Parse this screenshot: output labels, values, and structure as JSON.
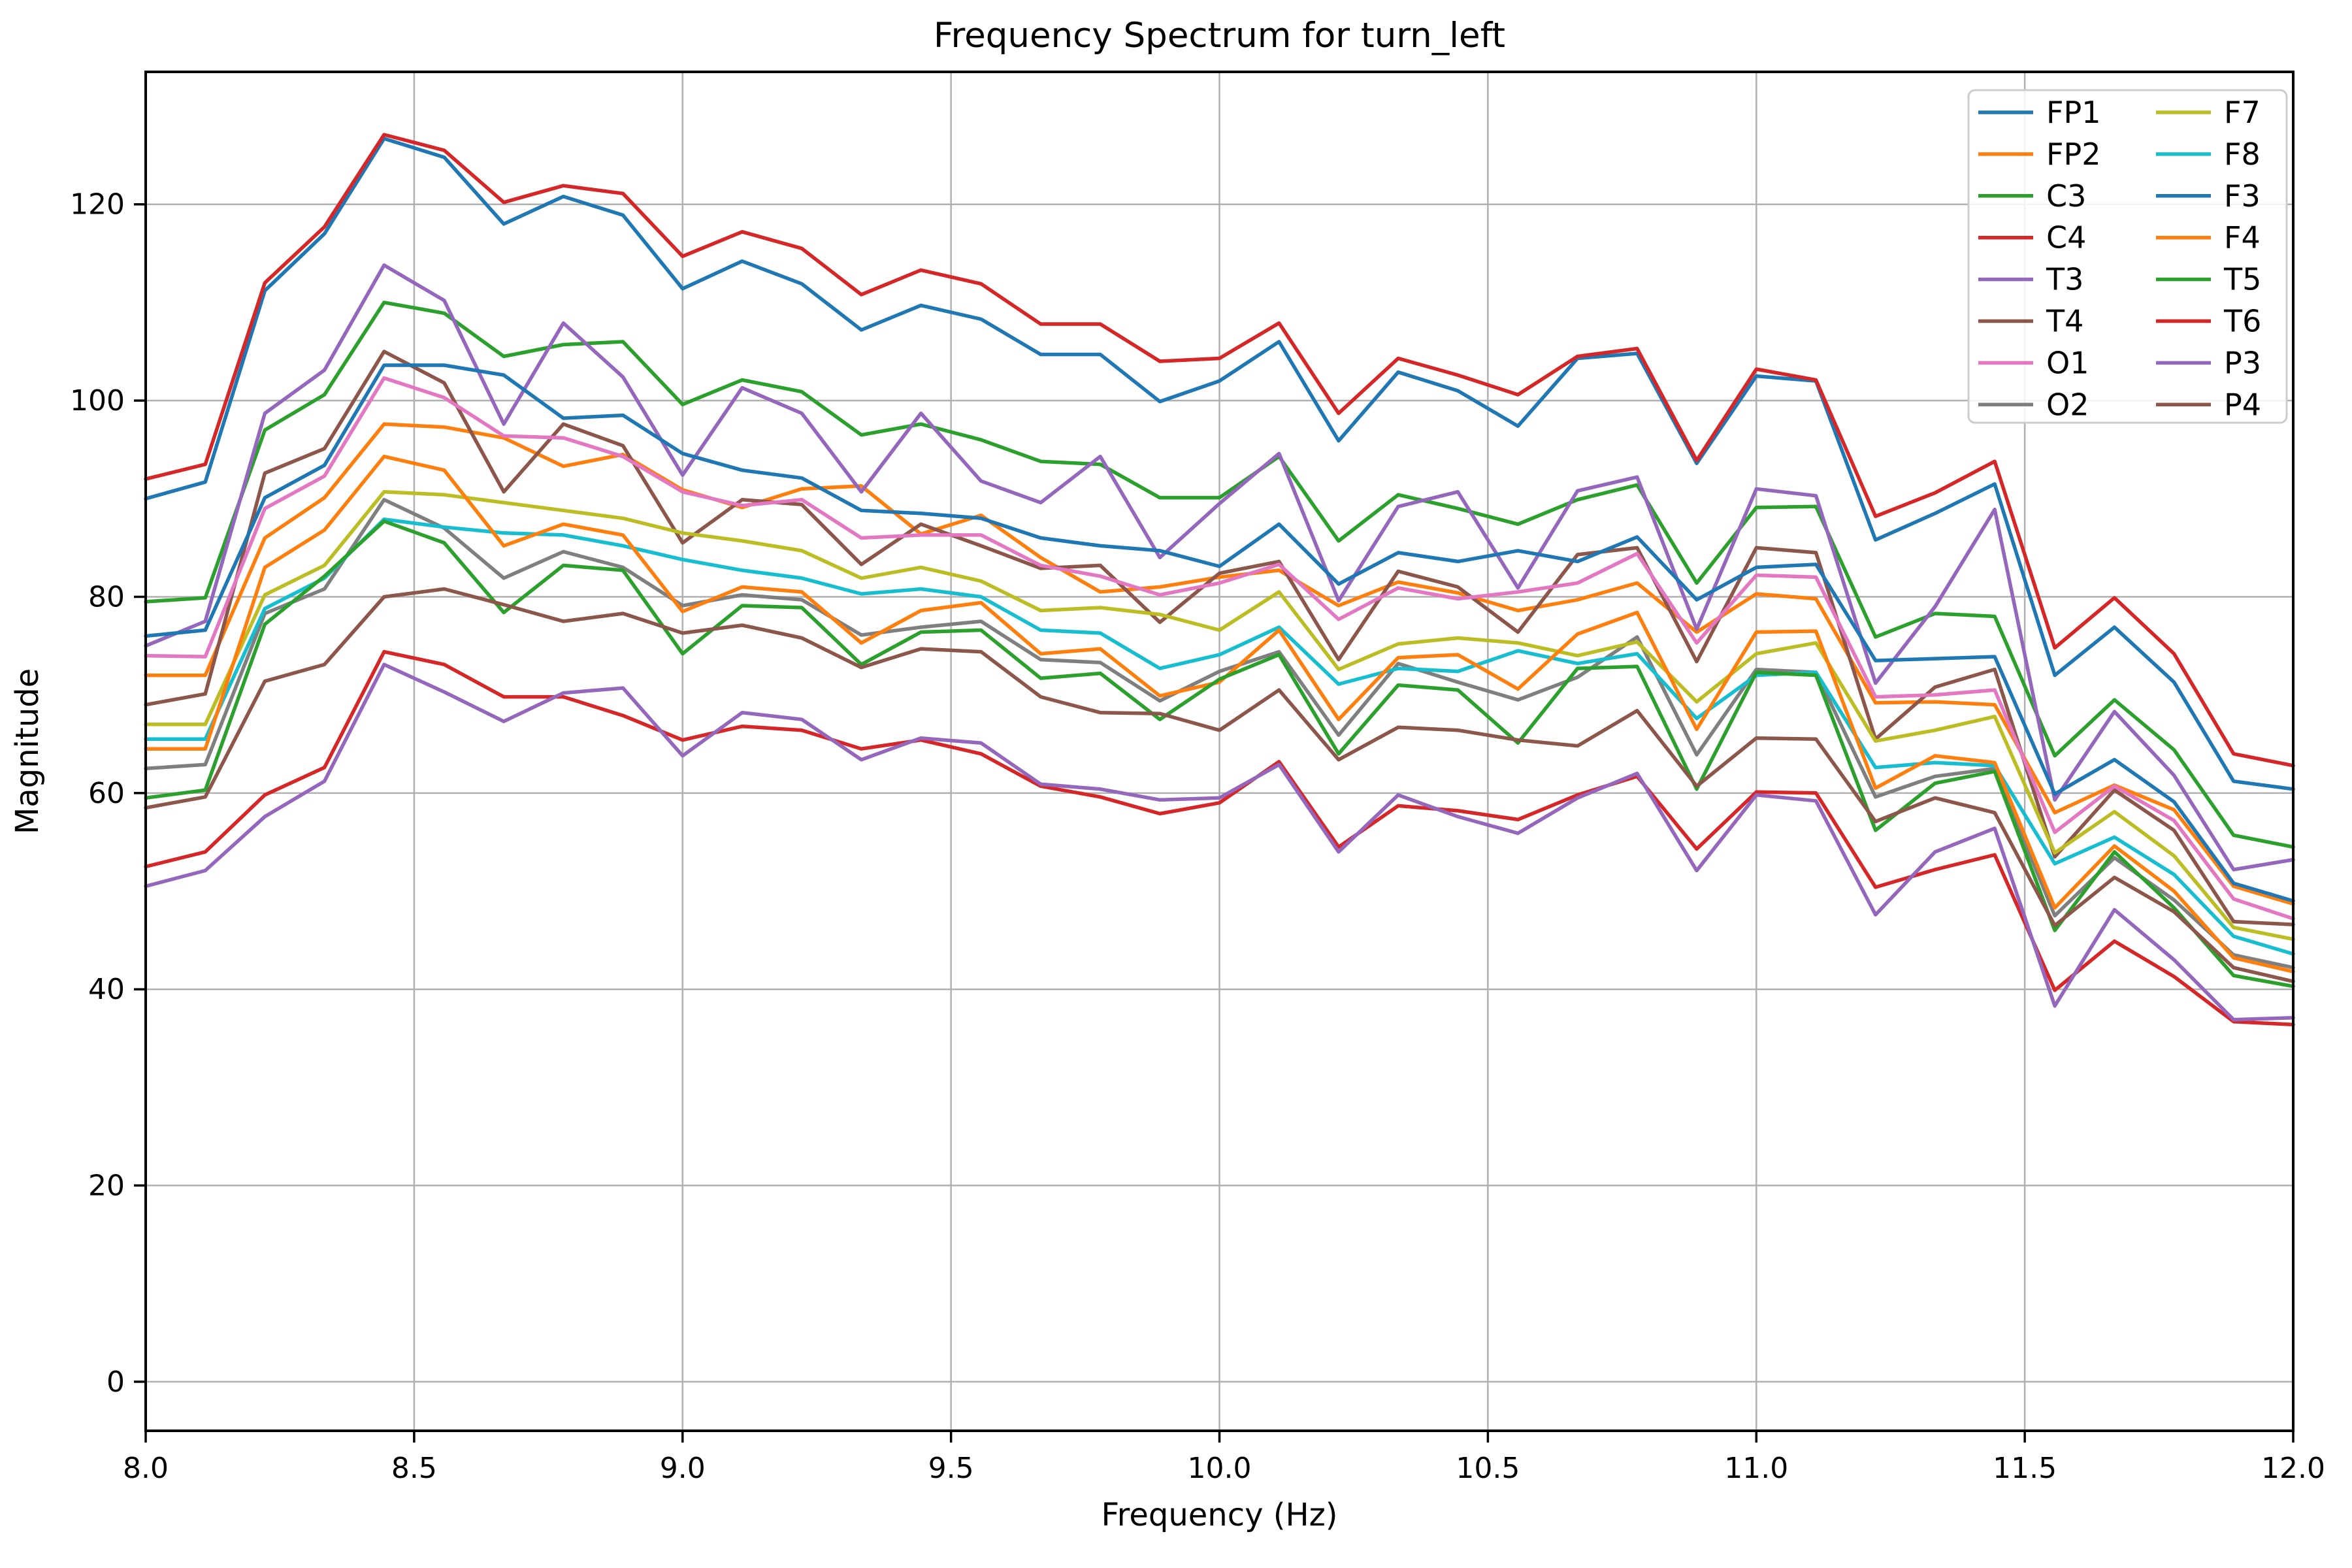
{
  "figure": {
    "title": "Frequency Spectrum for turn_left"
  },
  "chart_data": {
    "type": "line",
    "title": "Frequency Spectrum for turn_left",
    "xlabel": "Frequency (Hz)",
    "ylabel": "Magnitude",
    "xlim": [
      8.0,
      12.0
    ],
    "ylim": [
      -5.0,
      133.5
    ],
    "grid": true,
    "grid_color": "#b0b0b0",
    "legend_position": "upper right",
    "legend_columns": 2,
    "xticks": [
      8.0,
      8.5,
      9.0,
      9.5,
      10.0,
      10.5,
      11.0,
      11.5,
      12.0
    ],
    "xtick_labels": [
      "8.0",
      "8.5",
      "9.0",
      "9.5",
      "10.0",
      "10.5",
      "11.0",
      "11.5",
      "12.0"
    ],
    "yticks": [
      0,
      20,
      40,
      60,
      80,
      100,
      120
    ],
    "ytick_labels": [
      "0",
      "20",
      "40",
      "60",
      "80",
      "100",
      "120"
    ],
    "x": [
      8.0,
      8.111,
      8.222,
      8.333,
      8.444,
      8.556,
      8.667,
      8.778,
      8.889,
      9.0,
      9.111,
      9.222,
      9.333,
      9.444,
      9.556,
      9.667,
      9.778,
      9.889,
      10.0,
      10.111,
      10.222,
      10.333,
      10.444,
      10.556,
      10.667,
      10.778,
      10.889,
      11.0,
      11.111,
      11.222,
      11.333,
      11.444,
      11.556,
      11.667,
      11.778,
      11.889,
      12.0
    ],
    "series": [
      {
        "name": "FP1",
        "color": "#1f77b4",
        "values": [
          90.0,
          91.7,
          111.2,
          117.0,
          126.7,
          124.8,
          118.0,
          120.8,
          118.9,
          111.4,
          114.2,
          111.9,
          107.2,
          109.7,
          108.3,
          104.7,
          104.7,
          99.9,
          102.0,
          106.0,
          95.9,
          102.9,
          101.0,
          97.4,
          104.3,
          104.8,
          93.6,
          102.5,
          102.0,
          85.8,
          88.5,
          91.5,
          72.0,
          76.9,
          71.3,
          61.2,
          60.4
        ]
      },
      {
        "name": "FP2",
        "color": "#ff7f0e",
        "values": [
          72.0,
          72.0,
          86.0,
          90.1,
          97.6,
          97.3,
          96.2,
          93.3,
          94.5,
          90.9,
          89.1,
          91.0,
          91.3,
          86.4,
          88.3,
          84.0,
          80.5,
          81.0,
          82.0,
          82.7,
          79.1,
          81.5,
          80.4,
          78.6,
          79.7,
          81.4,
          76.4,
          80.3,
          79.8,
          69.2,
          69.3,
          69.0,
          58.0,
          60.8,
          58.3,
          50.5,
          48.7
        ]
      },
      {
        "name": "C3",
        "color": "#2ca02c",
        "values": [
          79.5,
          79.9,
          97.0,
          100.6,
          110.0,
          108.9,
          104.5,
          105.7,
          106.0,
          99.6,
          102.1,
          100.9,
          96.5,
          97.6,
          96.0,
          93.8,
          93.5,
          90.1,
          90.1,
          94.3,
          85.7,
          90.4,
          89.0,
          87.4,
          89.9,
          91.4,
          81.4,
          89.1,
          89.2,
          75.9,
          78.3,
          78.0,
          63.8,
          69.5,
          64.4,
          55.7,
          54.5
        ]
      },
      {
        "name": "C4",
        "color": "#d62728",
        "values": [
          92.0,
          93.5,
          112.0,
          117.7,
          127.1,
          125.5,
          120.2,
          121.9,
          121.1,
          114.7,
          117.2,
          115.5,
          110.8,
          113.3,
          111.9,
          107.8,
          107.8,
          104.0,
          104.3,
          107.9,
          98.7,
          104.3,
          102.6,
          100.6,
          104.5,
          105.3,
          93.9,
          103.2,
          102.1,
          88.2,
          90.6,
          93.8,
          74.8,
          79.9,
          74.2,
          64.0,
          62.8
        ]
      },
      {
        "name": "T3",
        "color": "#9467bd",
        "values": [
          75.0,
          77.5,
          98.7,
          103.1,
          113.8,
          110.2,
          97.6,
          107.9,
          102.4,
          92.4,
          101.3,
          98.7,
          90.7,
          98.7,
          91.8,
          89.6,
          94.3,
          84.0,
          89.5,
          94.6,
          79.6,
          89.2,
          90.7,
          80.9,
          90.8,
          92.2,
          76.7,
          91.0,
          90.3,
          71.2,
          79.0,
          88.9,
          59.3,
          68.3,
          61.8,
          52.2,
          53.2
        ]
      },
      {
        "name": "T4",
        "color": "#8c564b",
        "values": [
          69.0,
          70.1,
          92.6,
          95.1,
          105.0,
          101.8,
          90.7,
          97.6,
          95.4,
          85.5,
          89.9,
          89.4,
          83.3,
          87.4,
          85.2,
          82.9,
          83.2,
          77.4,
          82.4,
          83.6,
          73.6,
          82.6,
          81.0,
          76.4,
          84.3,
          85.0,
          73.4,
          85.0,
          84.5,
          65.5,
          70.8,
          72.6,
          53.5,
          60.3,
          56.2,
          46.9,
          46.6
        ]
      },
      {
        "name": "O1",
        "color": "#e377c2",
        "values": [
          74.0,
          73.9,
          89.0,
          92.3,
          102.3,
          100.3,
          96.4,
          96.2,
          94.3,
          90.7,
          89.3,
          89.9,
          86.0,
          86.3,
          86.3,
          83.2,
          82.1,
          80.2,
          81.4,
          83.3,
          77.7,
          80.9,
          79.8,
          80.5,
          81.4,
          84.4,
          75.3,
          82.2,
          82.0,
          69.8,
          70.0,
          70.5,
          56.0,
          60.7,
          57.2,
          49.2,
          47.2
        ]
      },
      {
        "name": "O2",
        "color": "#7f7f7f",
        "values": [
          62.5,
          62.9,
          78.3,
          80.8,
          89.9,
          87.0,
          81.9,
          84.6,
          83.0,
          79.1,
          80.2,
          79.7,
          76.1,
          76.9,
          77.5,
          73.6,
          73.3,
          69.4,
          72.4,
          74.4,
          65.9,
          73.2,
          71.3,
          69.5,
          71.8,
          75.9,
          63.9,
          72.6,
          72.3,
          59.6,
          61.7,
          62.5,
          47.5,
          53.4,
          49.1,
          43.5,
          42.2
        ]
      },
      {
        "name": "F7",
        "color": "#bcbd22",
        "values": [
          67.0,
          67.0,
          80.2,
          83.2,
          90.7,
          90.4,
          89.6,
          88.8,
          88.0,
          86.5,
          85.7,
          84.7,
          81.9,
          83.0,
          81.6,
          78.6,
          78.9,
          78.2,
          76.6,
          80.5,
          72.6,
          75.2,
          75.8,
          75.3,
          74.0,
          75.4,
          69.3,
          74.2,
          75.3,
          65.3,
          66.4,
          67.8,
          53.9,
          58.1,
          53.6,
          46.3,
          45.1
        ]
      },
      {
        "name": "F8",
        "color": "#17becf",
        "values": [
          65.5,
          65.5,
          78.8,
          81.9,
          87.9,
          87.1,
          86.5,
          86.3,
          85.2,
          83.8,
          82.7,
          81.9,
          80.3,
          80.8,
          80.0,
          76.6,
          76.3,
          72.7,
          74.1,
          76.9,
          71.1,
          72.7,
          72.4,
          74.5,
          73.2,
          74.2,
          67.6,
          72.0,
          72.3,
          62.6,
          63.1,
          62.8,
          52.8,
          55.5,
          51.7,
          45.4,
          43.6
        ]
      },
      {
        "name": "F3",
        "color": "#1f77b4",
        "values": [
          76.0,
          76.6,
          90.1,
          93.4,
          103.6,
          103.6,
          102.6,
          98.2,
          98.5,
          94.6,
          92.9,
          92.1,
          88.8,
          88.5,
          88.0,
          86.0,
          85.2,
          84.7,
          83.1,
          87.4,
          81.3,
          84.5,
          83.6,
          84.7,
          83.6,
          86.1,
          79.7,
          83.0,
          83.3,
          73.5,
          73.7,
          73.9,
          59.9,
          63.4,
          59.1,
          50.8,
          49.0
        ]
      },
      {
        "name": "F4",
        "color": "#ff7f0e",
        "values": [
          64.5,
          64.5,
          83.0,
          86.8,
          94.3,
          92.9,
          85.2,
          87.4,
          86.3,
          78.5,
          81.0,
          80.5,
          75.3,
          78.6,
          79.4,
          74.2,
          74.7,
          69.9,
          71.3,
          76.6,
          67.5,
          73.8,
          74.1,
          70.6,
          76.2,
          78.4,
          66.5,
          76.4,
          76.5,
          60.5,
          63.8,
          63.1,
          48.3,
          54.6,
          50.0,
          43.2,
          41.8
        ]
      },
      {
        "name": "T5",
        "color": "#2ca02c",
        "values": [
          59.5,
          60.3,
          77.2,
          82.1,
          87.7,
          85.5,
          78.4,
          83.2,
          82.7,
          74.2,
          79.1,
          78.9,
          73.1,
          76.4,
          76.6,
          71.7,
          72.2,
          67.5,
          71.6,
          74.1,
          64.0,
          71.0,
          70.5,
          65.1,
          72.7,
          72.9,
          60.4,
          72.3,
          72.0,
          56.2,
          61.0,
          62.2,
          46.0,
          54.0,
          48.3,
          41.4,
          40.3
        ]
      },
      {
        "name": "T6",
        "color": "#d62728",
        "values": [
          52.5,
          54.0,
          59.8,
          62.6,
          74.4,
          73.1,
          69.8,
          69.8,
          67.9,
          65.4,
          66.8,
          66.4,
          64.5,
          65.4,
          64.0,
          60.7,
          59.6,
          57.9,
          59.0,
          63.2,
          54.5,
          58.7,
          58.2,
          57.3,
          59.8,
          61.7,
          54.3,
          60.1,
          60.0,
          50.4,
          52.2,
          53.7,
          39.9,
          44.9,
          41.3,
          36.7,
          36.4
        ]
      },
      {
        "name": "P3",
        "color": "#9467bd",
        "values": [
          50.5,
          52.1,
          57.6,
          61.2,
          73.1,
          70.3,
          67.3,
          70.2,
          70.7,
          63.8,
          68.2,
          67.5,
          63.4,
          65.6,
          65.1,
          60.9,
          60.4,
          59.3,
          59.5,
          62.9,
          54.0,
          59.8,
          57.6,
          55.9,
          59.5,
          62.0,
          52.1,
          59.8,
          59.2,
          47.6,
          54.0,
          56.4,
          38.3,
          48.1,
          43.0,
          36.9,
          37.1
        ]
      },
      {
        "name": "P4",
        "color": "#8c564b",
        "values": [
          58.5,
          59.6,
          71.4,
          73.1,
          80.0,
          80.8,
          79.2,
          77.5,
          78.3,
          76.3,
          77.1,
          75.8,
          72.8,
          74.7,
          74.4,
          69.8,
          68.2,
          68.1,
          66.4,
          70.5,
          63.4,
          66.7,
          66.4,
          65.4,
          64.8,
          68.4,
          60.7,
          65.6,
          65.5,
          57.1,
          59.5,
          58.0,
          46.5,
          51.4,
          47.9,
          42.2,
          40.8
        ]
      }
    ]
  }
}
